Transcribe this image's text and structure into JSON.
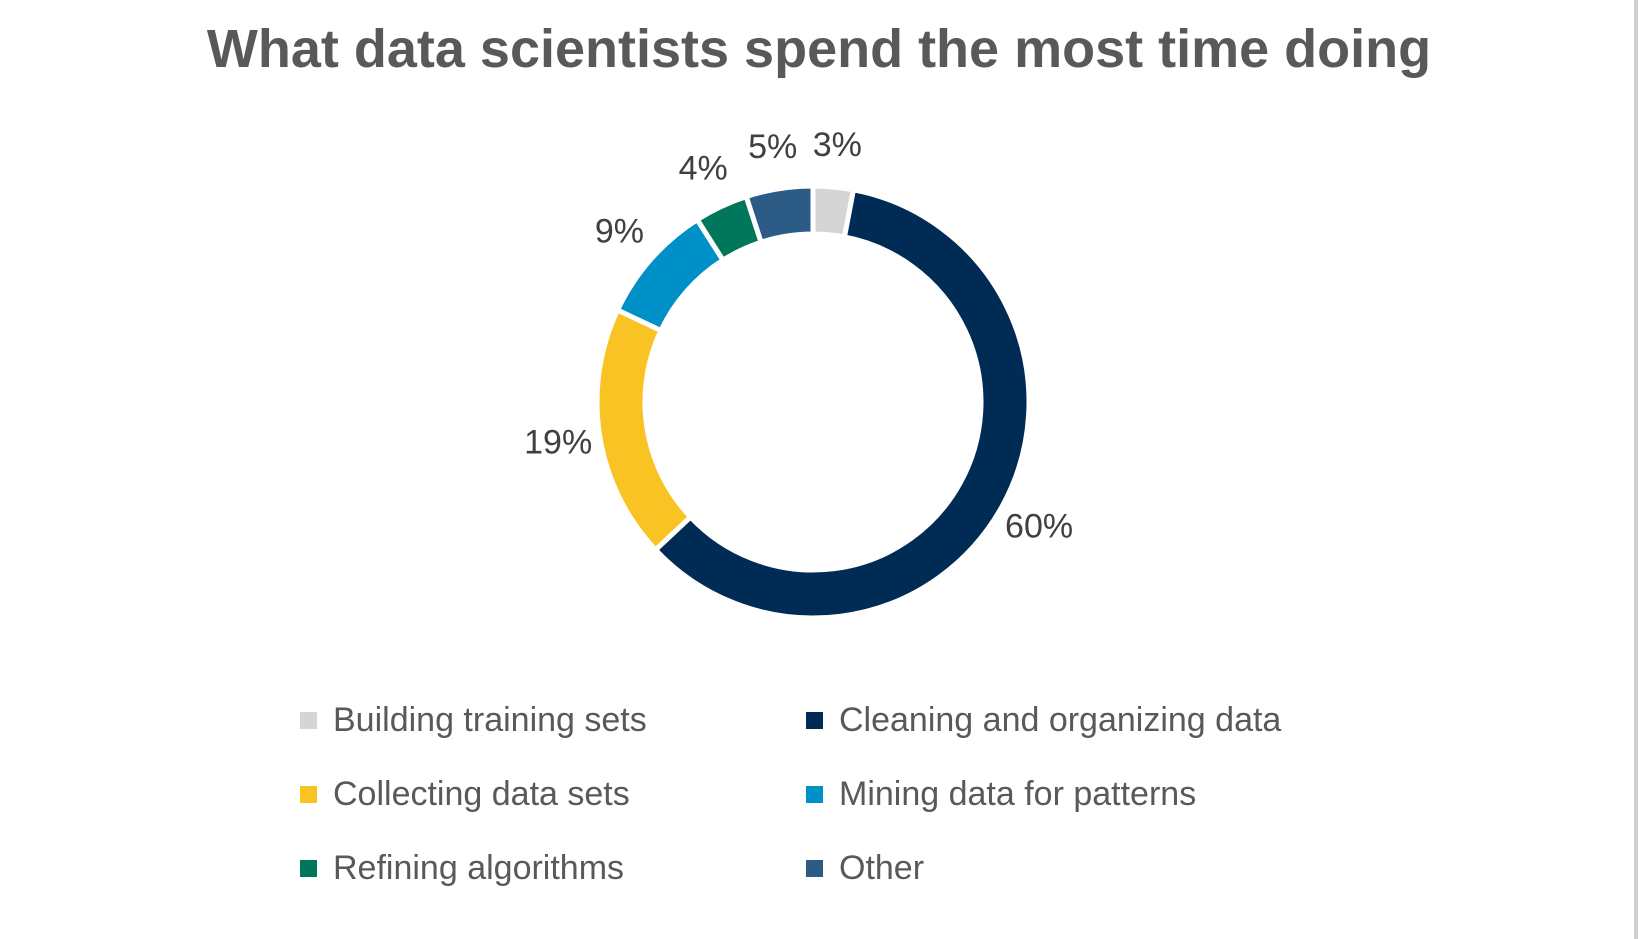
{
  "chart_data": {
    "type": "pie",
    "variant": "donut",
    "title": "What data scientists spend the most time doing",
    "categories": [
      "Building training sets",
      "Cleaning and organizing data",
      "Collecting data sets",
      "Mining data for patterns",
      "Refining algorithms",
      "Other"
    ],
    "values": [
      3,
      60,
      19,
      9,
      4,
      5
    ],
    "value_labels": [
      "3%",
      "60%",
      "19%",
      "9%",
      "4%",
      "5%"
    ],
    "colors": [
      "#D5D5D5",
      "#002B55",
      "#F9C423",
      "#0090C8",
      "#00775A",
      "#2C5B86"
    ],
    "legend_position": "bottom",
    "label_color": "#404040",
    "title_color": "#595959"
  }
}
